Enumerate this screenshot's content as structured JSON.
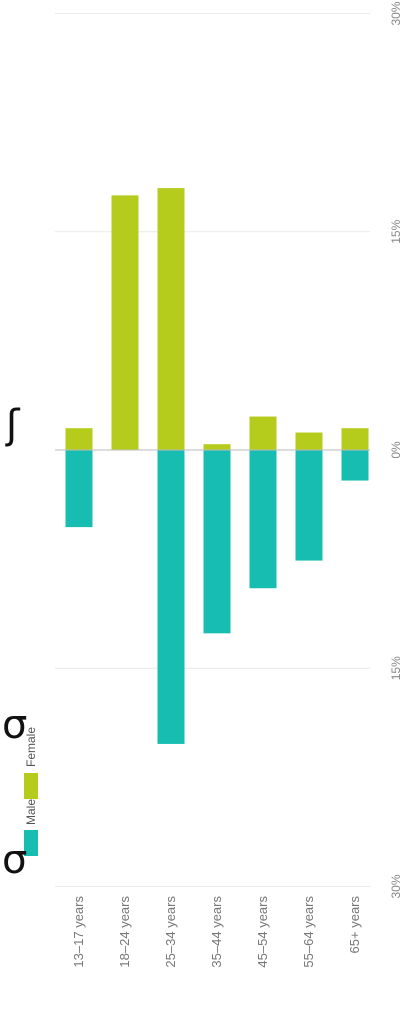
{
  "chart_data": {
    "type": "bar",
    "orientation": "rotated-90",
    "categories": [
      "13–17 years",
      "18–24 years",
      "25–34 years",
      "35–44 years",
      "45–54 years",
      "55–64 years",
      "65+ years"
    ],
    "series": [
      {
        "name": "Female",
        "values": [
          1.5,
          17.5,
          18.0,
          0.4,
          2.3,
          1.2,
          1.5
        ]
      },
      {
        "name": "Male",
        "values": [
          -5.3,
          0,
          -20.2,
          -12.6,
          -9.5,
          -7.6,
          -2.1
        ]
      }
    ],
    "ytick_labels": [
      "30%",
      "15%",
      "0%",
      "15%",
      "30%"
    ],
    "ylim": [
      -30,
      30
    ],
    "grid": true,
    "legend": {
      "position": "bottom-left",
      "entries": [
        "Male",
        "Female"
      ]
    },
    "colors": {
      "Female": "#b5cc1c",
      "Male": "#17bdb0",
      "grid": "#e9e9e9",
      "zero_line": "#bbbbbb",
      "text": "#777777"
    }
  }
}
